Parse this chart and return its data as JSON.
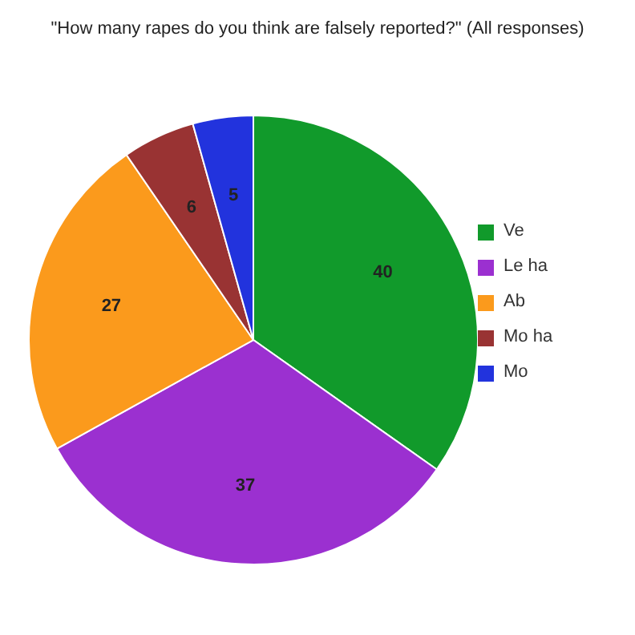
{
  "chart_data": {
    "type": "pie",
    "title": "\"How many rapes do you think are falsely reported?\" (All responses)",
    "categories": [
      "Ve",
      "Le ha",
      "Ab",
      "Mo ha",
      "Mo"
    ],
    "values": [
      40,
      37,
      27,
      6,
      5
    ],
    "colors": [
      "#119a2b",
      "#9b30d0",
      "#fb9a1c",
      "#993333",
      "#2233dd"
    ],
    "data_labels": true,
    "legend": "right"
  }
}
